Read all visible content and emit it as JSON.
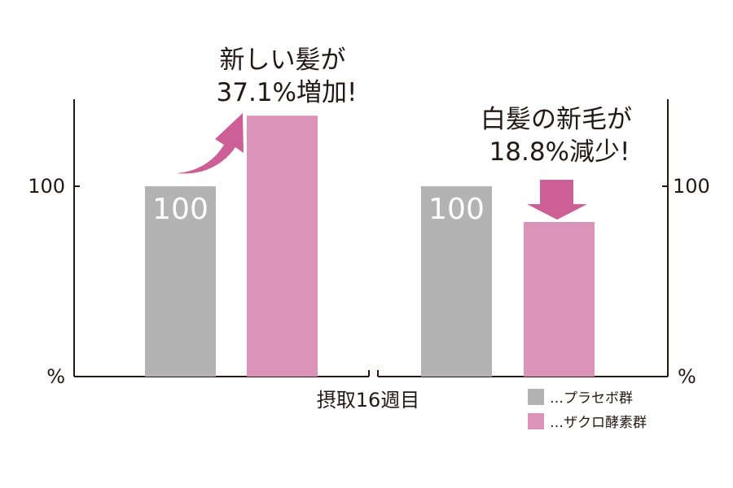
{
  "chart_data": [
    {
      "type": "bar",
      "categories": [
        "プラセボ群",
        "ザクロ酵素群"
      ],
      "values": [
        100,
        137.1
      ],
      "data_labels": [
        "100",
        ""
      ],
      "ylim": [
        0,
        145
      ],
      "yticks": [
        "100"
      ],
      "yunit": "%",
      "annotation": [
        "新しい髪が",
        "37.1%増加!"
      ],
      "annotation_marker": "curved-up-arrow"
    },
    {
      "type": "bar",
      "categories": [
        "プラセボ群",
        "ザクロ酵素群"
      ],
      "values": [
        100,
        81.2
      ],
      "data_labels": [
        "100",
        ""
      ],
      "ylim": [
        0,
        145
      ],
      "yticks": [
        "100"
      ],
      "yunit": "%",
      "annotation": [
        "白髪の新毛が",
        "18.8%減少!"
      ],
      "annotation_marker": "down-arrow"
    }
  ],
  "xlabel": "摂取16週目",
  "legend": [
    {
      "label": "…プラセボ群",
      "color": "#b3b3b3"
    },
    {
      "label": "…ザクロ酵素群",
      "color": "#dc93b9"
    }
  ],
  "colors": {
    "placebo": "#b3b3b3",
    "treatment": "#dc93b9",
    "arrow": "#cc5f96",
    "axis": "#231815"
  }
}
